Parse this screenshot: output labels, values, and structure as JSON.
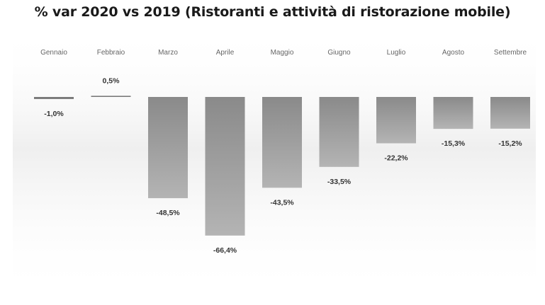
{
  "chart_data": {
    "type": "bar",
    "title": "% var 2020 vs 2019 (Ristoranti e attività di ristorazione mobile)",
    "categories": [
      "Gennaio",
      "Febbraio",
      "Marzo",
      "Aprile",
      "Maggio",
      "Giugno",
      "Luglio",
      "Agosto",
      "Settembre"
    ],
    "values": [
      -1.0,
      0.5,
      -48.5,
      -66.4,
      -43.5,
      -33.5,
      -22.2,
      -15.3,
      -15.2
    ],
    "value_labels": [
      "-1,0%",
      "0,5%",
      "-48,5%",
      "-66,4%",
      "-43,5%",
      "-33,5%",
      "-22,2%",
      "-15,3%",
      "-15,2%"
    ],
    "xlabel": "",
    "ylabel": "",
    "ylim": [
      -70,
      5
    ],
    "grid": false,
    "legend": "none",
    "colors": {
      "bar_top": "#8a8a8a",
      "bar_bottom": "#b4b4b4",
      "label": "#333333",
      "category": "#666666",
      "background_shadow": "#e8e8e8"
    }
  }
}
